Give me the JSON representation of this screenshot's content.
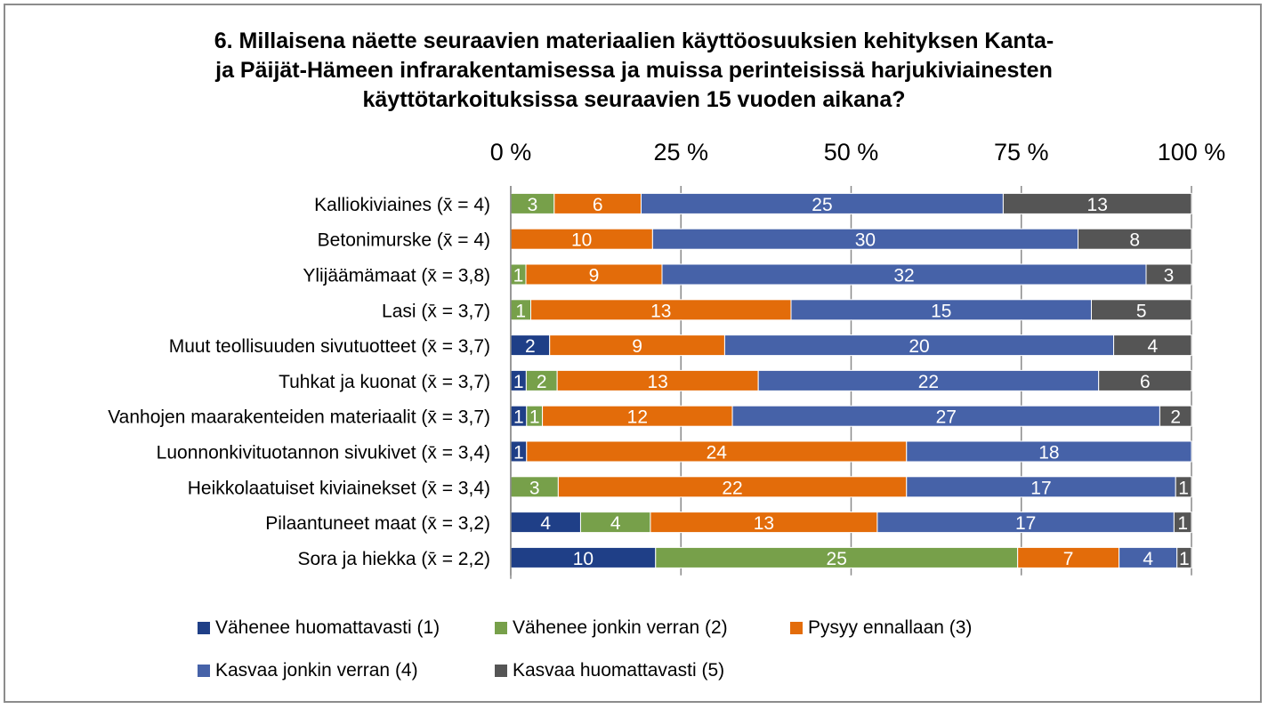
{
  "chart_data": {
    "type": "bar",
    "orientation": "horizontal",
    "stacking": "percent",
    "title_lines": [
      "6. Millaisena näette seuraavien materiaalien käyttöosuuksien kehityksen Kanta-",
      "ja Päijät-Hämeen infrarakentamisessa ja muissa perinteisissä harjukiviainesten",
      "käyttötarkoituksissa seuraavien 15 vuoden aikana?"
    ],
    "x_ticks": [
      "0 %",
      "25 %",
      "50 %",
      "75 %",
      "100 %"
    ],
    "xlim": [
      0,
      100
    ],
    "grid": true,
    "legend_position": "bottom",
    "categories": [
      "Kalliokiviaines (x̄ = 4)",
      "Betonimurske (x̄ = 4)",
      "Ylijäämämaat (x̄ = 3,8)",
      "Lasi (x̄ = 3,7)",
      "Muut teollisuuden sivutuotteet (x̄ = 3,7)",
      "Tuhkat ja kuonat (x̄ = 3,7)",
      "Vanhojen maarakenteiden materiaalit (x̄ = 3,7)",
      "Luonnonkivituotannon sivukivet (x̄ = 3,4)",
      "Heikkolaatuiset kiviainekset (x̄ = 3,4)",
      "Pilaantuneet maat (x̄ = 3,2)",
      "Sora ja hiekka (x̄ = 2,2)"
    ],
    "series": [
      {
        "name": "Vähenee huomattavasti (1)",
        "color": "#1f3f87",
        "values": [
          0,
          0,
          0,
          0,
          2,
          1,
          1,
          1,
          0,
          4,
          10
        ]
      },
      {
        "name": "Vähenee jonkin verran (2)",
        "color": "#77a04a",
        "values": [
          3,
          0,
          1,
          1,
          0,
          2,
          1,
          0,
          3,
          4,
          25
        ]
      },
      {
        "name": "Pysyy ennallaan (3)",
        "color": "#e36c0a",
        "values": [
          6,
          10,
          9,
          13,
          9,
          13,
          12,
          24,
          22,
          13,
          7
        ]
      },
      {
        "name": "Kasvaa jonkin verran (4)",
        "color": "#4662a8",
        "values": [
          25,
          30,
          32,
          15,
          20,
          22,
          27,
          18,
          17,
          17,
          4
        ]
      },
      {
        "name": "Kasvaa huomattavasti (5)",
        "color": "#555555",
        "values": [
          13,
          8,
          3,
          5,
          4,
          6,
          2,
          0,
          1,
          1,
          1
        ]
      }
    ]
  }
}
